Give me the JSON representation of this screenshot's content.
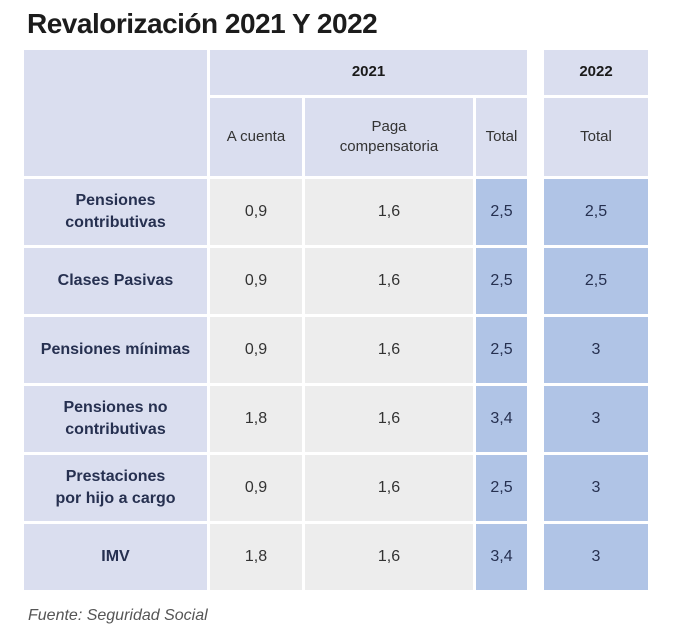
{
  "title": "Revalorización 2021 Y 2022",
  "source": "Fuente: Seguridad Social",
  "table": {
    "year_2021": "2021",
    "year_2022": "2022",
    "col_a_cuenta": "A cuenta",
    "col_paga": "Paga\ncompensatoria",
    "col_total": "Total",
    "col_total_2022": "Total",
    "rows": [
      {
        "label": "Pensiones\ncontributivas",
        "a_cuenta": "0,9",
        "paga": "1,6",
        "total_2021": "2,5",
        "total_2022": "2,5"
      },
      {
        "label": "Clases Pasivas",
        "a_cuenta": "0,9",
        "paga": "1,6",
        "total_2021": "2,5",
        "total_2022": "2,5"
      },
      {
        "label": "Pensiones mínimas",
        "a_cuenta": "0,9",
        "paga": "1,6",
        "total_2021": "2,5",
        "total_2022": "3"
      },
      {
        "label": "Pensiones no\ncontributivas",
        "a_cuenta": "1,8",
        "paga": "1,6",
        "total_2021": "3,4",
        "total_2022": "3"
      },
      {
        "label": "Prestaciones\npor hijo a cargo",
        "a_cuenta": "0,9",
        "paga": "1,6",
        "total_2021": "2,5",
        "total_2022": "3"
      },
      {
        "label": "IMV",
        "a_cuenta": "1,8",
        "paga": "1,6",
        "total_2021": "3,4",
        "total_2022": "3"
      }
    ]
  },
  "colors": {
    "header_bg": "#dadeef",
    "data_bg": "#ededed",
    "total_bg": "#b0c4e6",
    "label_text": "#263050",
    "value_text": "#333333",
    "title_text": "#1c1c1c",
    "source_text": "#555555"
  },
  "chart_data": {
    "type": "table",
    "title": "Revalorización 2021 Y 2022",
    "source": "Fuente: Seguridad Social",
    "column_groups": [
      {
        "year": "2021",
        "columns": [
          "A cuenta",
          "Paga compensatoria",
          "Total"
        ]
      },
      {
        "year": "2022",
        "columns": [
          "Total"
        ]
      }
    ],
    "rows": [
      {
        "label": "Pensiones contributivas",
        "a_cuenta_2021": 0.9,
        "paga_compensatoria_2021": 1.6,
        "total_2021": 2.5,
        "total_2022": 2.5
      },
      {
        "label": "Clases Pasivas",
        "a_cuenta_2021": 0.9,
        "paga_compensatoria_2021": 1.6,
        "total_2021": 2.5,
        "total_2022": 2.5
      },
      {
        "label": "Pensiones mínimas",
        "a_cuenta_2021": 0.9,
        "paga_compensatoria_2021": 1.6,
        "total_2021": 2.5,
        "total_2022": 3
      },
      {
        "label": "Pensiones no contributivas",
        "a_cuenta_2021": 1.8,
        "paga_compensatoria_2021": 1.6,
        "total_2021": 3.4,
        "total_2022": 3
      },
      {
        "label": "Prestaciones por hijo a cargo",
        "a_cuenta_2021": 0.9,
        "paga_compensatoria_2021": 1.6,
        "total_2021": 2.5,
        "total_2022": 3
      },
      {
        "label": "IMV",
        "a_cuenta_2021": 1.8,
        "paga_compensatoria_2021": 1.6,
        "total_2021": 3.4,
        "total_2022": 3
      }
    ]
  }
}
